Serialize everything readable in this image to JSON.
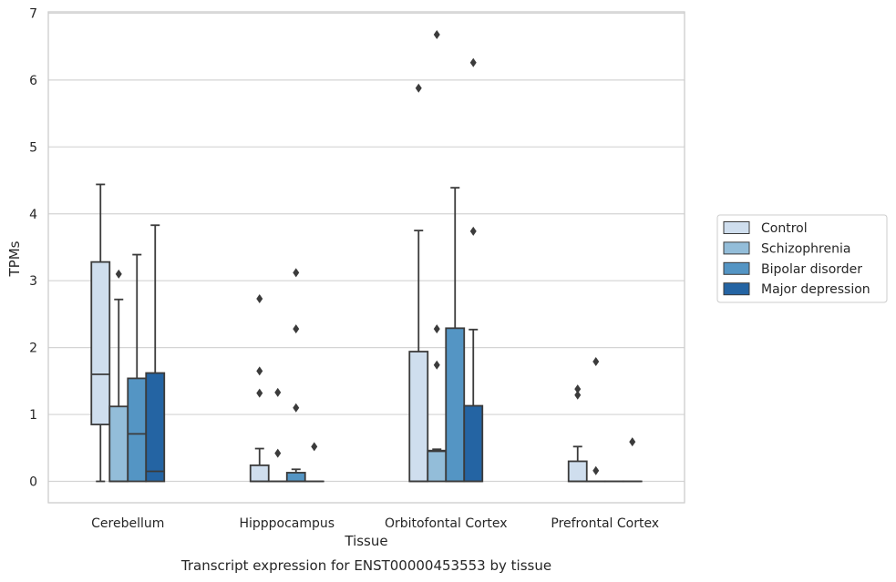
{
  "chart_data": {
    "type": "box",
    "title": "",
    "caption": "Transcript expression for ENST00000453553 by tissue",
    "xlabel": "Tissue",
    "ylabel": "TPMs",
    "ylim": [
      -0.32,
      7.02
    ],
    "yticks": [
      0,
      1,
      2,
      3,
      4,
      5,
      6,
      7
    ],
    "grid": true,
    "legend_position": "right",
    "categories": [
      "Cerebellum",
      "Hipppocampus",
      "Orbitofontal Cortex",
      "Prefrontal Cortex"
    ],
    "series": [
      {
        "name": "Control",
        "color": "#cfdeee",
        "boxes": [
          {
            "q1": 0.85,
            "median": 1.6,
            "q3": 3.28,
            "whisker_low": 0.0,
            "whisker_high": 4.44,
            "outliers": []
          },
          {
            "q1": 0.0,
            "median": 0.0,
            "q3": 0.24,
            "whisker_low": 0.0,
            "whisker_high": 0.49,
            "outliers": [
              2.73,
              1.65,
              1.32
            ]
          },
          {
            "q1": 0.0,
            "median": 0.0,
            "q3": 1.94,
            "whisker_low": 0.0,
            "whisker_high": 3.75,
            "outliers": [
              5.88
            ]
          },
          {
            "q1": 0.0,
            "median": 0.0,
            "q3": 0.3,
            "whisker_low": 0.0,
            "whisker_high": 0.52,
            "outliers": [
              1.38,
              1.29
            ]
          }
        ]
      },
      {
        "name": "Schizophrenia",
        "color": "#93bdd9",
        "boxes": [
          {
            "q1": 0.0,
            "median": 0.0,
            "q3": 1.12,
            "whisker_low": 0.0,
            "whisker_high": 2.72,
            "outliers": [
              3.1
            ]
          },
          {
            "q1": 0.0,
            "median": 0.0,
            "q3": 0.0,
            "whisker_low": 0.0,
            "whisker_high": 0.0,
            "outliers": [
              1.33,
              0.42
            ]
          },
          {
            "q1": 0.0,
            "median": 0.45,
            "q3": 0.46,
            "whisker_low": 0.0,
            "whisker_high": 0.48,
            "outliers": [
              6.68,
              2.28,
              1.74
            ]
          },
          {
            "q1": 0.0,
            "median": 0.0,
            "q3": 0.0,
            "whisker_low": 0.0,
            "whisker_high": 0.0,
            "outliers": [
              1.79,
              0.16
            ]
          }
        ]
      },
      {
        "name": "Bipolar disorder",
        "color": "#5495c4",
        "boxes": [
          {
            "q1": 0.0,
            "median": 0.71,
            "q3": 1.54,
            "whisker_low": 0.0,
            "whisker_high": 3.39,
            "outliers": []
          },
          {
            "q1": 0.0,
            "median": 0.0,
            "q3": 0.13,
            "whisker_low": 0.0,
            "whisker_high": 0.18,
            "outliers": [
              3.12,
              2.28,
              1.1
            ]
          },
          {
            "q1": 0.0,
            "median": 0.0,
            "q3": 2.29,
            "whisker_low": 0.0,
            "whisker_high": 4.39,
            "outliers": []
          },
          {
            "q1": 0.0,
            "median": 0.0,
            "q3": 0.0,
            "whisker_low": 0.0,
            "whisker_high": 0.0,
            "outliers": []
          }
        ]
      },
      {
        "name": "Major depression",
        "color": "#2464a3",
        "boxes": [
          {
            "q1": 0.0,
            "median": 0.15,
            "q3": 1.62,
            "whisker_low": 0.0,
            "whisker_high": 3.83,
            "outliers": []
          },
          {
            "q1": 0.0,
            "median": 0.0,
            "q3": 0.0,
            "whisker_low": 0.0,
            "whisker_high": 0.0,
            "outliers": [
              0.52
            ]
          },
          {
            "q1": 0.0,
            "median": 0.0,
            "q3": 1.13,
            "whisker_low": 0.0,
            "whisker_high": 2.27,
            "outliers": [
              6.26,
              3.74
            ]
          },
          {
            "q1": 0.0,
            "median": 0.0,
            "q3": 0.0,
            "whisker_low": 0.0,
            "whisker_high": 0.0,
            "outliers": [
              0.59
            ]
          }
        ]
      }
    ]
  }
}
